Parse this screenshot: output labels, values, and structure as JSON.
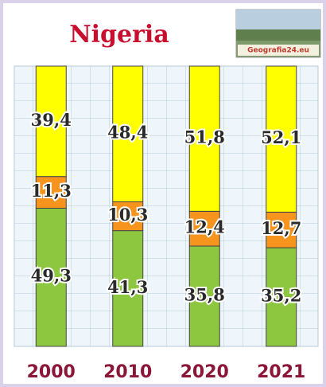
{
  "chart_data": {
    "type": "stacked_bar",
    "title": "Nigeria",
    "categories": [
      "2000",
      "2010",
      "2020",
      "2021"
    ],
    "series": [
      {
        "color": "#8dc63f",
        "values": [
          49.3,
          41.3,
          35.8,
          35.2
        ],
        "value_labels": [
          "49,3",
          "41,3",
          "35,8",
          "35,2"
        ]
      },
      {
        "color": "#f7941d",
        "values": [
          11.3,
          10.3,
          12.4,
          12.7
        ],
        "value_labels": [
          "11,3",
          "10,3",
          "12,4",
          "12,7"
        ]
      },
      {
        "color": "#ffff00",
        "values": [
          39.4,
          48.4,
          51.8,
          52.1
        ],
        "value_labels": [
          "39,4",
          "48,4",
          "51,8",
          "52,1"
        ]
      }
    ],
    "ylim": [
      0,
      100
    ]
  },
  "logo": {
    "text": "Geografia24.eu"
  }
}
